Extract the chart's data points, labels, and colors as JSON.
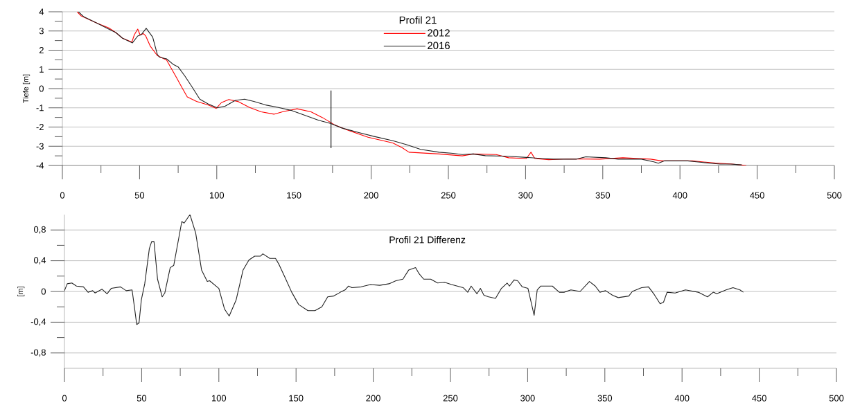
{
  "chart_data": [
    {
      "type": "line",
      "legend_title": "Profil 21",
      "ylabel": "Tiefe [m]",
      "xlim": [
        0,
        500
      ],
      "ylim": [
        -4,
        4
      ],
      "xticks": [
        0,
        50,
        100,
        150,
        200,
        250,
        300,
        350,
        400,
        450,
        500
      ],
      "yticks": [
        -4,
        -3,
        -2,
        -1,
        0,
        1,
        2,
        3,
        4
      ],
      "grid": "y",
      "legend": "top",
      "series": [
        {
          "name": "2012",
          "color": "#ff0000",
          "x": [
            9.6,
            12.2,
            22.7,
            30,
            34.6,
            39,
            45,
            46.6,
            48.8,
            50.3,
            52.5,
            54,
            57,
            61.5,
            64.5,
            67.5,
            73.4,
            77.9,
            80.9,
            86.9,
            94.3,
            99.6,
            103,
            107.8,
            113.7,
            121,
            128.7,
            137,
            143,
            152,
            161,
            168.5,
            176,
            183,
            198,
            214,
            220,
            224.5,
            244,
            259,
            266,
            281,
            289,
            300.5,
            303.5,
            306,
            315,
            327,
            348,
            363,
            381,
            388,
            408,
            423,
            434,
            443
          ],
          "values": [
            4.0,
            3.78,
            3.4,
            3.16,
            2.92,
            2.62,
            2.42,
            2.8,
            3.1,
            2.8,
            2.86,
            2.74,
            2.2,
            1.72,
            1.6,
            1.49,
            0.65,
            -0.01,
            -0.43,
            -0.67,
            -0.85,
            -1.03,
            -0.73,
            -0.57,
            -0.67,
            -0.97,
            -1.21,
            -1.33,
            -1.2,
            -1.05,
            -1.21,
            -1.51,
            -1.87,
            -2.11,
            -2.53,
            -2.83,
            -3.07,
            -3.31,
            -3.4,
            -3.5,
            -3.4,
            -3.43,
            -3.6,
            -3.64,
            -3.31,
            -3.64,
            -3.7,
            -3.66,
            -3.67,
            -3.6,
            -3.67,
            -3.76,
            -3.76,
            -3.88,
            -3.93,
            -4.0
          ]
        },
        {
          "name": "2016",
          "color": "#222222",
          "x": [
            10.4,
            13.7,
            22.7,
            30,
            34.6,
            39,
            45.4,
            48.8,
            51,
            54.3,
            58.5,
            61.5,
            63,
            67.5,
            72,
            75,
            79.4,
            83.9,
            89,
            94.3,
            100.3,
            105.5,
            112,
            118,
            124,
            131.6,
            140,
            148,
            157,
            166,
            173.6,
            181,
            192,
            202,
            214,
            223,
            232,
            244,
            253,
            259,
            266,
            274,
            289,
            300.5,
            311,
            318,
            333,
            339,
            352,
            360,
            375,
            383,
            386,
            390,
            405,
            414,
            426,
            433,
            438,
            440
          ],
          "values": [
            4.0,
            3.75,
            3.4,
            3.1,
            2.92,
            2.62,
            2.38,
            2.74,
            2.8,
            3.14,
            2.68,
            1.78,
            1.63,
            1.55,
            1.25,
            1.13,
            0.65,
            0.1,
            -0.55,
            -0.79,
            -1.0,
            -0.91,
            -0.61,
            -0.55,
            -0.67,
            -0.85,
            -0.98,
            -1.13,
            -1.39,
            -1.65,
            -1.81,
            -2.05,
            -2.29,
            -2.49,
            -2.71,
            -2.92,
            -3.16,
            -3.31,
            -3.37,
            -3.43,
            -3.4,
            -3.49,
            -3.52,
            -3.58,
            -3.64,
            -3.67,
            -3.67,
            -3.55,
            -3.6,
            -3.67,
            -3.67,
            -3.81,
            -3.88,
            -3.76,
            -3.76,
            -3.84,
            -3.93,
            -3.93,
            -3.96,
            -3.97
          ]
        },
        {
          "type": "line",
          "color": "#000000",
          "x": [
            174,
            174
          ],
          "values": [
            -0.1,
            -3.1
          ]
        }
      ]
    },
    {
      "type": "line",
      "title": "Profil 21 Differenz",
      "ylabel": "[m]",
      "xlim": [
        0,
        500
      ],
      "ylim": [
        -1,
        1
      ],
      "xticks": [
        0,
        50,
        100,
        150,
        200,
        250,
        300,
        350,
        400,
        450,
        500
      ],
      "yticks": [
        {
          "value": -0.8,
          "label": "-0,8"
        },
        {
          "value": -0.4,
          "label": "-0,4"
        },
        0,
        {
          "value": 0.4,
          "label": "0,4"
        },
        {
          "value": 0.8,
          "label": "0,8"
        }
      ],
      "grid": "y",
      "series": [
        {
          "color": "#222222",
          "x": [
            0,
            1.8,
            4.8,
            7.8,
            12.3,
            15.3,
            18.3,
            19.8,
            24.3,
            27.6,
            30.3,
            36.3,
            40,
            43.8,
            45.3,
            46.8,
            48.3,
            49.8,
            52,
            55,
            56.5,
            58,
            60.3,
            63.3,
            65,
            68.5,
            70.8,
            76,
            77.5,
            81.3,
            85,
            88.8,
            92.5,
            94,
            100,
            103.7,
            106.7,
            111.2,
            115.7,
            119.5,
            123.2,
            127,
            128.5,
            133,
            136.7,
            139,
            142.7,
            147.2,
            151.7,
            157.7,
            162.2,
            166.7,
            170.5,
            174.2,
            178.7,
            181.7,
            184,
            186.2,
            192.2,
            198.2,
            204.2,
            210.2,
            214.7,
            219.2,
            223,
            227.4,
            229.7,
            232.7,
            237.2,
            241.7,
            246.2,
            250.7,
            258.2,
            261.2,
            263.4,
            267.2,
            269.4,
            271.7,
            274.7,
            279.2,
            283,
            286.7,
            288.2,
            291.2,
            293.5,
            296.5,
            300.2,
            304.2,
            306.2,
            308.5,
            316,
            320.5,
            323.6,
            328,
            334,
            340,
            343.8,
            346.8,
            350.5,
            355,
            358.7,
            365.5,
            367.8,
            373.8,
            378.3,
            382,
            385.8,
            388,
            390.3,
            395.5,
            402.2,
            410.5,
            416.5,
            420.2,
            422.5,
            428.5,
            433,
            437.5,
            439.7
          ],
          "values": [
            0.01,
            0.1,
            0.11,
            0.07,
            0.06,
            -0.01,
            0.01,
            -0.02,
            0.03,
            -0.03,
            0.04,
            0.06,
            0.01,
            0.02,
            -0.2,
            -0.43,
            -0.41,
            -0.11,
            0.1,
            0.56,
            0.65,
            0.65,
            0.16,
            -0.07,
            -0.02,
            0.31,
            0.34,
            0.91,
            0.89,
            1.0,
            0.76,
            0.28,
            0.13,
            0.14,
            0.04,
            -0.23,
            -0.32,
            -0.11,
            0.28,
            0.41,
            0.46,
            0.46,
            0.49,
            0.43,
            0.43,
            0.35,
            0.19,
            -0.01,
            -0.17,
            -0.25,
            -0.25,
            -0.2,
            -0.07,
            -0.06,
            -0.01,
            0.02,
            0.07,
            0.05,
            0.06,
            0.09,
            0.08,
            0.1,
            0.14,
            0.16,
            0.28,
            0.31,
            0.23,
            0.16,
            0.16,
            0.11,
            0.12,
            0.09,
            0.05,
            -0.01,
            0.07,
            -0.03,
            0.04,
            -0.05,
            -0.07,
            -0.09,
            0.04,
            0.11,
            0.07,
            0.15,
            0.14,
            0.06,
            0.04,
            -0.31,
            0.02,
            0.07,
            0.07,
            -0.01,
            -0.01,
            0.02,
            0.0,
            0.13,
            0.07,
            -0.01,
            0.01,
            -0.05,
            -0.08,
            -0.06,
            0.0,
            0.05,
            0.06,
            -0.04,
            -0.16,
            -0.14,
            -0.01,
            -0.02,
            0.02,
            -0.01,
            -0.07,
            -0.01,
            -0.03,
            0.02,
            0.05,
            0.02,
            -0.01
          ]
        }
      ]
    }
  ]
}
